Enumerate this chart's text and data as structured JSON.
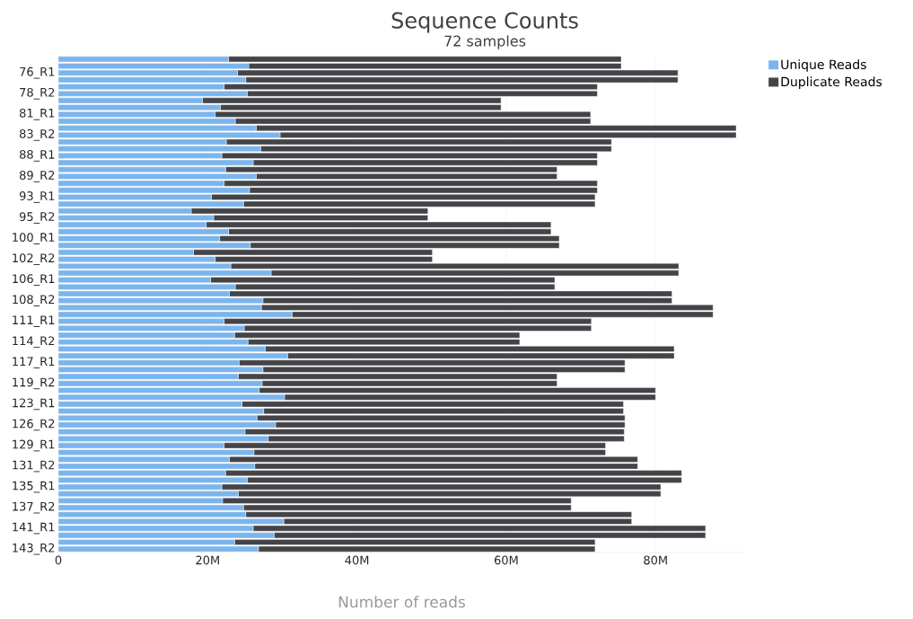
{
  "chart_data": {
    "type": "bar",
    "orientation": "horizontal",
    "stacked": true,
    "title": "Sequence Counts",
    "subtitle": "72 samples",
    "xlabel": "Number of reads",
    "categories": [
      null,
      null,
      "76_R1",
      null,
      null,
      "78_R2",
      null,
      null,
      "81_R1",
      null,
      null,
      "83_R2",
      null,
      null,
      "88_R1",
      null,
      null,
      "89_R2",
      null,
      null,
      "93_R1",
      null,
      null,
      "95_R2",
      null,
      null,
      "100_R1",
      null,
      null,
      "102_R2",
      null,
      null,
      "106_R1",
      null,
      null,
      "108_R2",
      null,
      null,
      "111_R1",
      null,
      null,
      "114_R2",
      null,
      null,
      "117_R1",
      null,
      null,
      "119_R2",
      null,
      null,
      "123_R1",
      null,
      null,
      "126_R2",
      null,
      null,
      "129_R1",
      null,
      null,
      "131_R2",
      null,
      null,
      "135_R1",
      null,
      null,
      "137_R2",
      null,
      null,
      "141_R1",
      null,
      null,
      "143_R2"
    ],
    "series": [
      {
        "name": "Unique Reads",
        "color": "#7cb5ec",
        "values": [
          22.8,
          25.5,
          24.0,
          25.1,
          22.2,
          25.3,
          19.3,
          21.7,
          21.0,
          23.7,
          26.5,
          29.7,
          22.5,
          27.1,
          21.9,
          26.1,
          22.4,
          26.5,
          22.2,
          25.6,
          20.5,
          24.8,
          17.8,
          20.8,
          19.8,
          22.8,
          21.6,
          25.7,
          18.1,
          21.0,
          23.1,
          28.5,
          20.4,
          23.7,
          22.9,
          27.4,
          27.2,
          31.3,
          22.2,
          24.9,
          23.6,
          25.4,
          27.7,
          30.7,
          24.2,
          27.4,
          24.1,
          27.3,
          26.9,
          30.3,
          24.6,
          27.5,
          26.6,
          29.1,
          25.0,
          28.1,
          22.2,
          26.2,
          22.9,
          26.3,
          22.4,
          25.3,
          21.9,
          24.1,
          22.0,
          24.8,
          25.1,
          30.2,
          26.1,
          28.9,
          23.6,
          26.8
        ]
      },
      {
        "name": "Duplicate Reads",
        "color": "#434348",
        "values": [
          52.6,
          49.9,
          59.0,
          57.9,
          50.0,
          46.9,
          40.0,
          37.6,
          50.3,
          47.6,
          64.3,
          61.1,
          51.6,
          47.0,
          50.3,
          46.1,
          44.4,
          40.3,
          50.0,
          46.6,
          51.4,
          47.1,
          31.7,
          28.7,
          46.2,
          43.2,
          45.5,
          41.4,
          32.0,
          29.1,
          60.0,
          54.6,
          46.1,
          42.8,
          59.3,
          54.8,
          60.5,
          56.4,
          49.2,
          46.5,
          38.2,
          36.4,
          54.8,
          51.8,
          51.7,
          48.5,
          42.7,
          39.5,
          53.1,
          49.7,
          51.1,
          48.2,
          49.3,
          46.8,
          50.8,
          47.7,
          51.1,
          47.1,
          54.7,
          51.3,
          61.1,
          58.2,
          58.8,
          56.6,
          46.7,
          43.9,
          51.7,
          46.6,
          60.6,
          57.8,
          48.3,
          45.1
        ]
      }
    ],
    "xlim": [
      0,
      92
    ],
    "xticks": [
      0,
      {
        "value": 20,
        "label": "20M"
      },
      {
        "value": 40,
        "label": "40M"
      },
      {
        "value": 60,
        "label": "60M"
      },
      {
        "value": 80,
        "label": "80M"
      }
    ],
    "grid": "x",
    "legend": "top right"
  }
}
